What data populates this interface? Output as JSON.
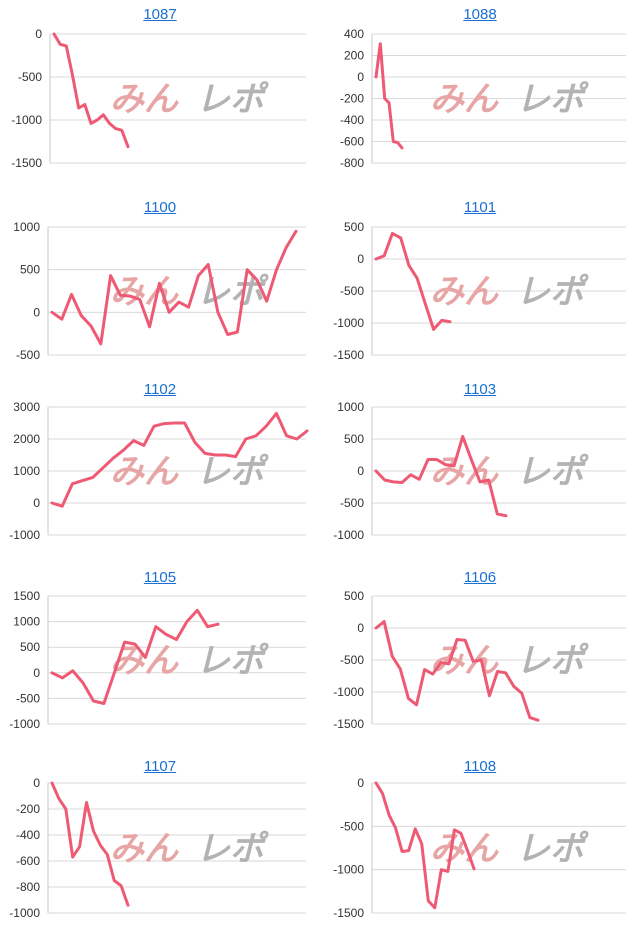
{
  "watermark": {
    "part1": "みん",
    "part2": "レポ"
  },
  "colors": {
    "line": "#ee5a74",
    "grid": "#d9d9d9",
    "axis": "#c8c8c8",
    "title": "#1a6fd1",
    "tick": "#333333"
  },
  "chart_data": [
    {
      "type": "line",
      "title": "1087",
      "ylim": [
        -1500,
        0
      ],
      "yticks": [
        0,
        -500,
        -1000,
        -1500
      ],
      "grid": true,
      "values": [
        0,
        -120,
        -140,
        -480,
        -860,
        -820,
        -1040,
        -1000,
        -940,
        -1040,
        -1100,
        -1120,
        -1310
      ]
    },
    {
      "type": "line",
      "title": "1088",
      "ylim": [
        -800,
        400
      ],
      "yticks": [
        400,
        200,
        0,
        -200,
        -400,
        -600,
        -800
      ],
      "grid": true,
      "values": [
        0,
        310,
        -200,
        -240,
        -600,
        -610,
        -660
      ]
    },
    {
      "type": "line",
      "title": "1100",
      "ylim": [
        -500,
        1000
      ],
      "yticks": [
        1000,
        500,
        0,
        -500
      ],
      "grid": true,
      "values": [
        0,
        -80,
        210,
        -40,
        -160,
        -370,
        430,
        200,
        190,
        150,
        -170,
        340,
        0,
        120,
        60,
        430,
        560,
        0,
        -260,
        -230,
        500,
        380,
        130,
        500,
        760,
        950
      ]
    },
    {
      "type": "line",
      "title": "1101",
      "ylim": [
        -1500,
        500
      ],
      "yticks": [
        500,
        0,
        -500,
        -1000,
        -1500
      ],
      "grid": true,
      "values": [
        0,
        50,
        400,
        330,
        -100,
        -300,
        -700,
        -1100,
        -960,
        -980
      ]
    },
    {
      "type": "line",
      "title": "1102",
      "ylim": [
        -1000,
        3000
      ],
      "yticks": [
        3000,
        2000,
        1000,
        0,
        -1000
      ],
      "grid": true,
      "values": [
        0,
        -100,
        600,
        700,
        800,
        1100,
        1400,
        1650,
        1950,
        1800,
        2400,
        2480,
        2500,
        2500,
        1900,
        1550,
        1500,
        1500,
        1450,
        2000,
        2100,
        2400,
        2800,
        2100,
        2000,
        2250
      ]
    },
    {
      "type": "line",
      "title": "1103",
      "ylim": [
        -1000,
        1000
      ],
      "yticks": [
        1000,
        500,
        0,
        -500,
        -1000
      ],
      "grid": true,
      "values": [
        0,
        -140,
        -170,
        -180,
        -60,
        -130,
        180,
        180,
        100,
        80,
        540,
        180,
        -170,
        -140,
        -670,
        -700
      ]
    },
    {
      "type": "line",
      "title": "1105",
      "ylim": [
        -1000,
        1500
      ],
      "yticks": [
        1500,
        1000,
        500,
        0,
        -500,
        -1000
      ],
      "grid": true,
      "values": [
        0,
        -100,
        40,
        -200,
        -550,
        -600,
        0,
        600,
        560,
        300,
        900,
        750,
        650,
        1000,
        1220,
        900,
        950
      ]
    },
    {
      "type": "line",
      "title": "1106",
      "ylim": [
        -1500,
        500
      ],
      "yticks": [
        500,
        0,
        -500,
        -1000,
        -1500
      ],
      "grid": true,
      "values": [
        0,
        100,
        -440,
        -640,
        -1100,
        -1200,
        -650,
        -720,
        -540,
        -560,
        -180,
        -190,
        -520,
        -500,
        -1060,
        -680,
        -700,
        -910,
        -1020,
        -1400,
        -1440
      ]
    },
    {
      "type": "line",
      "title": "1107",
      "ylim": [
        -1000,
        0
      ],
      "yticks": [
        0,
        -200,
        -400,
        -600,
        -800,
        -1000
      ],
      "grid": true,
      "values": [
        0,
        -120,
        -200,
        -570,
        -490,
        -150,
        -370,
        -480,
        -550,
        -750,
        -790,
        -940
      ]
    },
    {
      "type": "line",
      "title": "1108",
      "ylim": [
        -1500,
        0
      ],
      "yticks": [
        0,
        -500,
        -1000,
        -1500
      ],
      "grid": true,
      "values": [
        0,
        -120,
        -370,
        -520,
        -790,
        -780,
        -530,
        -700,
        -1360,
        -1440,
        -1000,
        -1020,
        -540,
        -580,
        -780,
        -990
      ]
    }
  ]
}
